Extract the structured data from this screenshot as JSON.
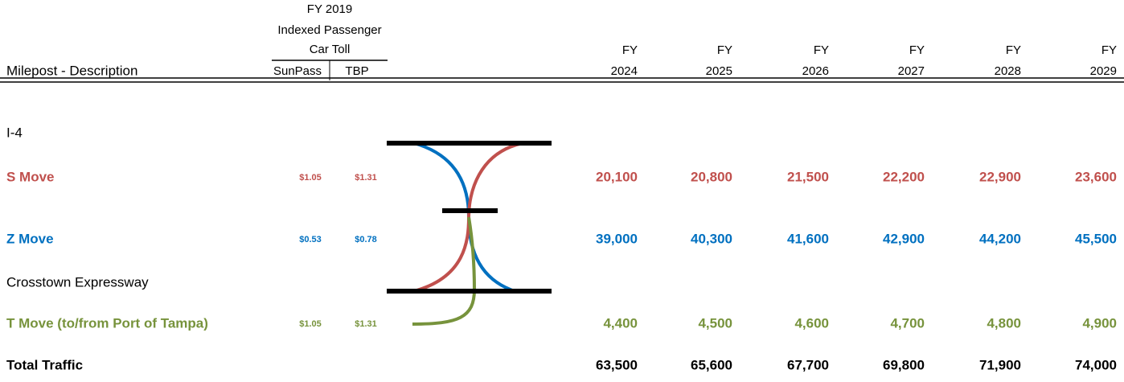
{
  "header": {
    "fy_label": "FY 2019",
    "toll_title_1": "Indexed Passenger",
    "toll_title_2": "Car Toll",
    "sunpass": "SunPass",
    "tbp": "TBP",
    "description": "Milepost - Description",
    "years": [
      {
        "fy": "FY",
        "year": "2024"
      },
      {
        "fy": "FY",
        "year": "2025"
      },
      {
        "fy": "FY",
        "year": "2026"
      },
      {
        "fy": "FY",
        "year": "2027"
      },
      {
        "fy": "FY",
        "year": "2028"
      },
      {
        "fy": "FY",
        "year": "2029"
      }
    ]
  },
  "rows": [
    {
      "label": "I-4"
    },
    {
      "label": "S Move",
      "color": "#c0504d",
      "sunpass": "$1.05",
      "tbp": "$1.31",
      "values": [
        "20,100",
        "20,800",
        "21,500",
        "22,200",
        "22,900",
        "23,600"
      ]
    },
    {
      "label": "Z Move",
      "color": "#0070c0",
      "sunpass": "$0.53",
      "tbp": "$0.78",
      "values": [
        "39,000",
        "40,300",
        "41,600",
        "42,900",
        "44,200",
        "45,500"
      ]
    },
    {
      "label": "Crosstown Expressway"
    },
    {
      "label": "T Move (to/from Port of Tampa)",
      "color": "#77933c",
      "sunpass": "$1.05",
      "tbp": "$1.31",
      "values": [
        "4,400",
        "4,500",
        "4,600",
        "4,700",
        "4,800",
        "4,900"
      ]
    },
    {
      "label": "Total Traffic",
      "color": "#000000",
      "values": [
        "63,500",
        "65,600",
        "67,700",
        "69,800",
        "71,900",
        "74,000"
      ]
    }
  ]
}
